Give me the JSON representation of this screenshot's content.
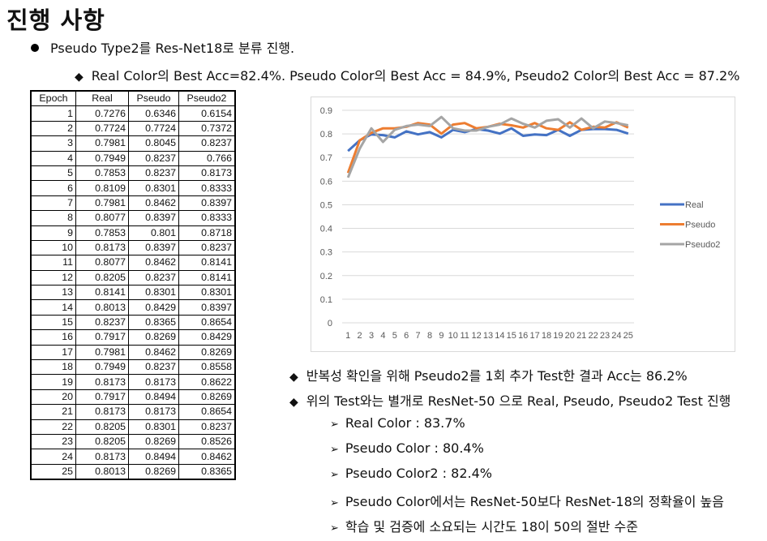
{
  "title": "진행 사항",
  "bullet1": "Pseudo Type2를 Res-Net18로 분류 진행.",
  "bullet2": "Real Color의 Best Acc=82.4%. Pseudo Color의 Best Acc = 84.9%, Pseudo2 Color의 Best Acc = 87.2%",
  "table": {
    "headers": [
      "Epoch",
      "Real",
      "Pseudo",
      "Pseudo2"
    ],
    "rows": [
      [
        "1",
        "0.7276",
        "0.6346",
        "0.6154"
      ],
      [
        "2",
        "0.7724",
        "0.7724",
        "0.7372"
      ],
      [
        "3",
        "0.7981",
        "0.8045",
        "0.8237"
      ],
      [
        "4",
        "0.7949",
        "0.8237",
        "0.766"
      ],
      [
        "5",
        "0.7853",
        "0.8237",
        "0.8173"
      ],
      [
        "6",
        "0.8109",
        "0.8301",
        "0.8333"
      ],
      [
        "7",
        "0.7981",
        "0.8462",
        "0.8397"
      ],
      [
        "8",
        "0.8077",
        "0.8397",
        "0.8333"
      ],
      [
        "9",
        "0.7853",
        "0.801",
        "0.8718"
      ],
      [
        "10",
        "0.8173",
        "0.8397",
        "0.8237"
      ],
      [
        "11",
        "0.8077",
        "0.8462",
        "0.8141"
      ],
      [
        "12",
        "0.8205",
        "0.8237",
        "0.8141"
      ],
      [
        "13",
        "0.8141",
        "0.8301",
        "0.8301"
      ],
      [
        "14",
        "0.8013",
        "0.8429",
        "0.8397"
      ],
      [
        "15",
        "0.8237",
        "0.8365",
        "0.8654"
      ],
      [
        "16",
        "0.7917",
        "0.8269",
        "0.8429"
      ],
      [
        "17",
        "0.7981",
        "0.8462",
        "0.8269"
      ],
      [
        "18",
        "0.7949",
        "0.8237",
        "0.8558"
      ],
      [
        "19",
        "0.8173",
        "0.8173",
        "0.8622"
      ],
      [
        "20",
        "0.7917",
        "0.8494",
        "0.8269"
      ],
      [
        "21",
        "0.8173",
        "0.8173",
        "0.8654"
      ],
      [
        "22",
        "0.8205",
        "0.8301",
        "0.8237"
      ],
      [
        "23",
        "0.8205",
        "0.8269",
        "0.8526"
      ],
      [
        "24",
        "0.8173",
        "0.8494",
        "0.8462"
      ],
      [
        "25",
        "0.8013",
        "0.8269",
        "0.8365"
      ]
    ]
  },
  "chart_data": {
    "type": "line",
    "x": [
      1,
      2,
      3,
      4,
      5,
      6,
      7,
      8,
      9,
      10,
      11,
      12,
      13,
      14,
      15,
      16,
      17,
      18,
      19,
      20,
      21,
      22,
      23,
      24,
      25
    ],
    "ylim": [
      0,
      0.9
    ],
    "yticks": [
      "0",
      "0.1",
      "0.2",
      "0.3",
      "0.4",
      "0.5",
      "0.6",
      "0.7",
      "0.8",
      "0.9"
    ],
    "grid": true,
    "legend": "right",
    "series": [
      {
        "name": "Real",
        "color": "#4472C4",
        "values": [
          0.7276,
          0.7724,
          0.7981,
          0.7949,
          0.7853,
          0.8109,
          0.7981,
          0.8077,
          0.7853,
          0.8173,
          0.8077,
          0.8205,
          0.8141,
          0.8013,
          0.8237,
          0.7917,
          0.7981,
          0.7949,
          0.8173,
          0.7917,
          0.8173,
          0.8205,
          0.8205,
          0.8173,
          0.8013
        ]
      },
      {
        "name": "Pseudo",
        "color": "#ED7D31",
        "values": [
          0.6346,
          0.7724,
          0.8045,
          0.8237,
          0.8237,
          0.8301,
          0.8462,
          0.8397,
          0.801,
          0.8397,
          0.8462,
          0.8237,
          0.8301,
          0.8429,
          0.8365,
          0.8269,
          0.8462,
          0.8237,
          0.8173,
          0.8494,
          0.8173,
          0.8301,
          0.8269,
          0.8494,
          0.8269
        ]
      },
      {
        "name": "Pseudo2",
        "color": "#A5A5A5",
        "values": [
          0.6154,
          0.7372,
          0.8237,
          0.766,
          0.8173,
          0.8333,
          0.8397,
          0.8333,
          0.8718,
          0.8237,
          0.8141,
          0.8141,
          0.8301,
          0.8397,
          0.8654,
          0.8429,
          0.8269,
          0.8558,
          0.8622,
          0.8269,
          0.8654,
          0.8237,
          0.8526,
          0.8462,
          0.8365
        ]
      }
    ]
  },
  "notes": [
    "반복성 확인을 위해 Pseudo2를 1회 추가 Test한 결과 Acc는 86.2%",
    "위의 Test와는 별개로 ResNet-50 으로 Real, Pseudo, Pseudo2 Test 진행"
  ],
  "subnotes": [
    "Real Color : 83.7%",
    "Pseudo Color : 80.4%",
    "Pseudo Color2 : 82.4%",
    "Pseudo Color에서는 ResNet-50보다 ResNet-18의 정확율이 높음",
    "학습 및 검증에 소요되는 시간도 18이 50의 절반 수준"
  ]
}
